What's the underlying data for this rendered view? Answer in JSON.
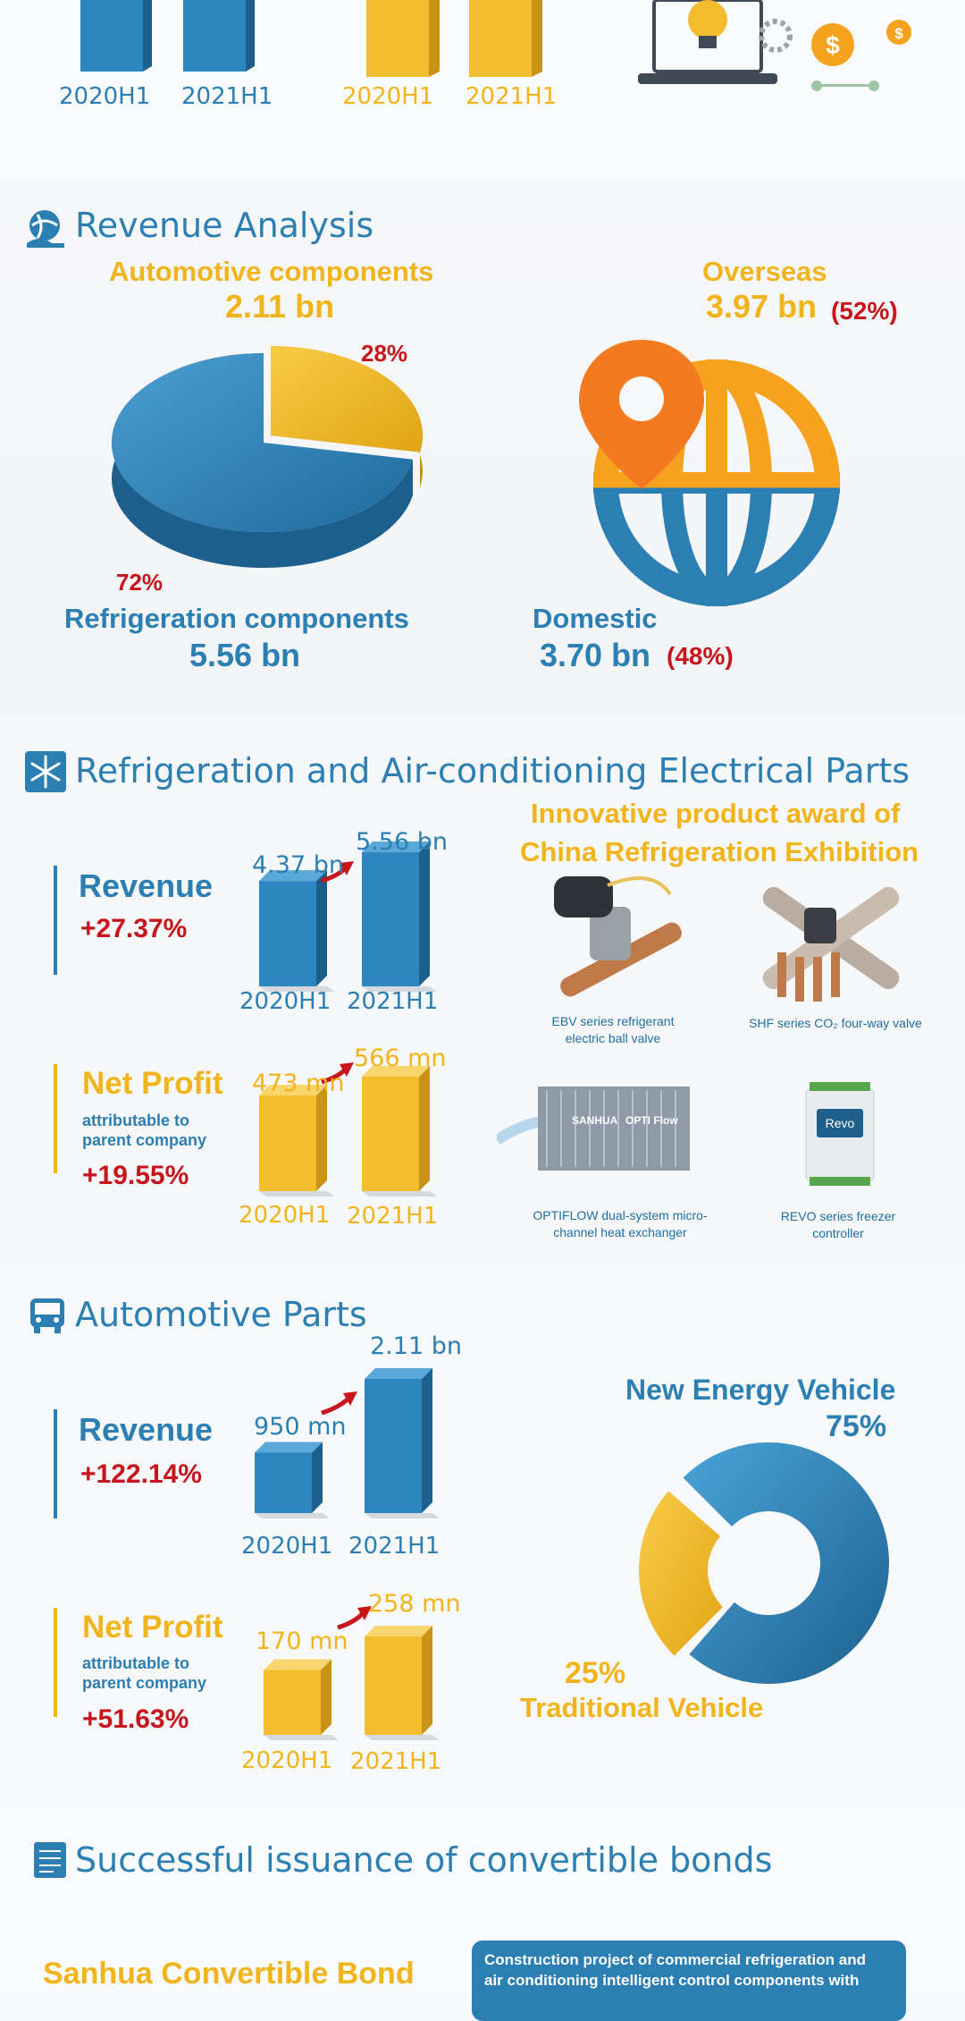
{
  "top": {
    "ticks_blue": [
      "2020H1",
      "2021H1"
    ],
    "ticks_yellow": [
      "2020H1",
      "2021H1"
    ]
  },
  "revenue_analysis": {
    "title": "Revenue Analysis",
    "auto_label": "Automotive components",
    "auto_value": "2.11 bn",
    "auto_pct": "28%",
    "refrig_label": "Refrigeration components",
    "refrig_value": "5.56 bn",
    "refrig_pct": "72%",
    "overseas_label": "Overseas",
    "overseas_value": "3.97 bn",
    "overseas_pct": "(52%)",
    "domestic_label": "Domestic",
    "domestic_value": "3.70 bn",
    "domestic_pct": "(48%)"
  },
  "refrigeration": {
    "title": "Refrigeration and Air-conditioning Electrical Parts",
    "revenue_label": "Revenue",
    "revenue_growth": "+27.37%",
    "profit_label": "Net Profit",
    "profit_sub1": "attributable to",
    "profit_sub2": "parent company",
    "profit_growth": "+19.55%",
    "award_line1": "Innovative product award of",
    "award_line2": "China Refrigeration Exhibition",
    "products": [
      {
        "line1": "EBV series refrigerant",
        "line2": "electric ball valve"
      },
      {
        "line1": "SHF series CO₂ four-way valve",
        "line2": ""
      },
      {
        "line1": "OPTIFLOW dual-system micro-",
        "line2": "channel heat exchanger"
      },
      {
        "line1": "REVO series freezer",
        "line2": "controller"
      }
    ],
    "optiflow_brand": "SANHUA",
    "optiflow_tag": "OPTI Flow",
    "revo_brand": "Revo"
  },
  "automotive": {
    "title": "Automotive Parts",
    "revenue_label": "Revenue",
    "revenue_growth": "+122.14%",
    "profit_label": "Net Profit",
    "profit_sub1": "attributable to",
    "profit_sub2": "parent company",
    "profit_growth": "+51.63%",
    "nev_label": "New Energy Vehicle",
    "nev_pct": "75%",
    "trad_label": "Traditional Vehicle",
    "trad_pct": "25%"
  },
  "bonds": {
    "title": "Successful issuance of convertible bonds",
    "bond_name": "Sanhua Convertible Bond",
    "box_line1": "Construction project of commercial refrigeration and",
    "box_line2": "air conditioning intelligent control components with"
  },
  "colors": {
    "blue": "#2b7fb3",
    "yellow": "#f1b41c",
    "red": "#c8141b",
    "orange": "#f47a20"
  },
  "chart_data": [
    {
      "type": "bar",
      "id": "top-blue",
      "categories": [
        "2020H1",
        "2021H1"
      ],
      "series": [
        {
          "values": [
            null,
            null
          ]
        }
      ]
    },
    {
      "type": "bar",
      "id": "top-yellow",
      "categories": [
        "2020H1",
        "2021H1"
      ],
      "series": [
        {
          "values": [
            null,
            null
          ]
        }
      ]
    },
    {
      "type": "pie",
      "id": "segment-pie",
      "labels": [
        "Automotive components",
        "Refrigeration components"
      ],
      "values": [
        28,
        72
      ],
      "amounts": [
        "2.11 bn",
        "5.56 bn"
      ]
    },
    {
      "type": "pie",
      "id": "region-split",
      "labels": [
        "Overseas",
        "Domestic"
      ],
      "values": [
        52,
        48
      ],
      "amounts": [
        "3.97 bn",
        "3.70 bn"
      ]
    },
    {
      "type": "bar",
      "id": "refrig-revenue",
      "categories": [
        "2020H1",
        "2021H1"
      ],
      "values": [
        4.37,
        5.56
      ],
      "value_labels": [
        "4.37 bn",
        "5.56 bn"
      ]
    },
    {
      "type": "bar",
      "id": "refrig-profit",
      "categories": [
        "2020H1",
        "2021H1"
      ],
      "values": [
        473,
        566
      ],
      "value_labels": [
        "473 mn",
        "566 mn"
      ]
    },
    {
      "type": "bar",
      "id": "auto-revenue",
      "categories": [
        "2020H1",
        "2021H1"
      ],
      "values": [
        0.95,
        2.11
      ],
      "value_labels": [
        "950 mn",
        "2.11 bn"
      ]
    },
    {
      "type": "bar",
      "id": "auto-profit",
      "categories": [
        "2020H1",
        "2021H1"
      ],
      "values": [
        170,
        258
      ],
      "value_labels": [
        "170 mn",
        "258 mn"
      ]
    },
    {
      "type": "pie",
      "id": "vehicle-donut",
      "labels": [
        "New Energy Vehicle",
        "Traditional Vehicle"
      ],
      "values": [
        75,
        25
      ]
    }
  ]
}
